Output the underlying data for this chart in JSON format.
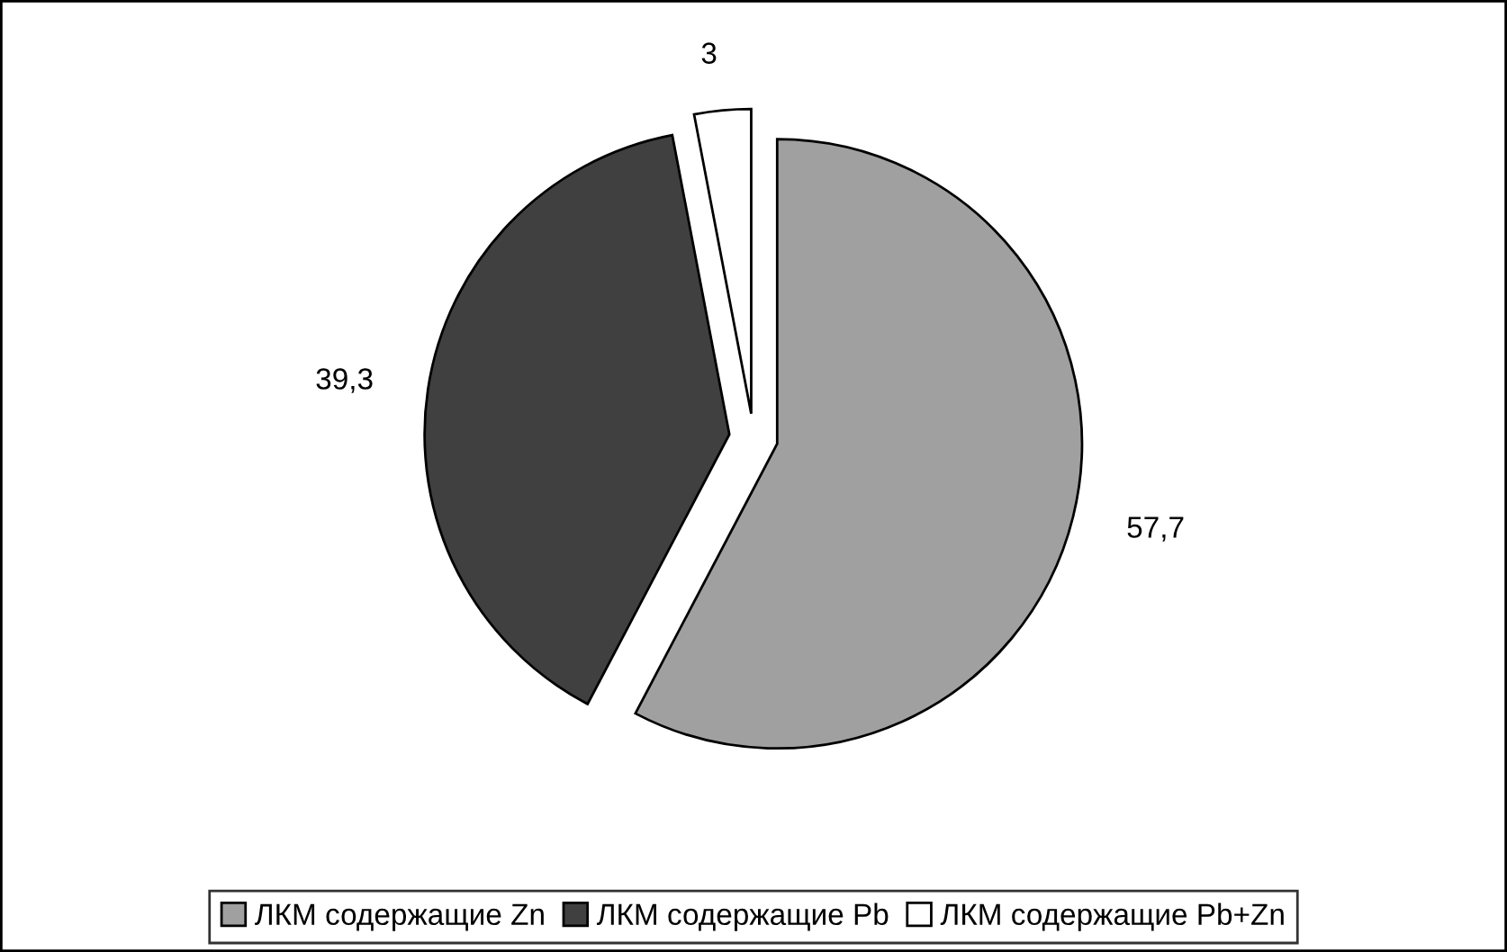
{
  "chart_data": {
    "type": "pie",
    "categories": [
      "ЛКМ содержащие Zn",
      "ЛКМ содержащие Pb",
      "ЛКМ содержащие Pb+Zn"
    ],
    "values": [
      57.7,
      39.3,
      3
    ],
    "value_labels": [
      "57,7",
      "39,3",
      "3"
    ],
    "colors": [
      "#a0a0a0",
      "#404040",
      "#ffffff"
    ],
    "legend": "bottom"
  }
}
